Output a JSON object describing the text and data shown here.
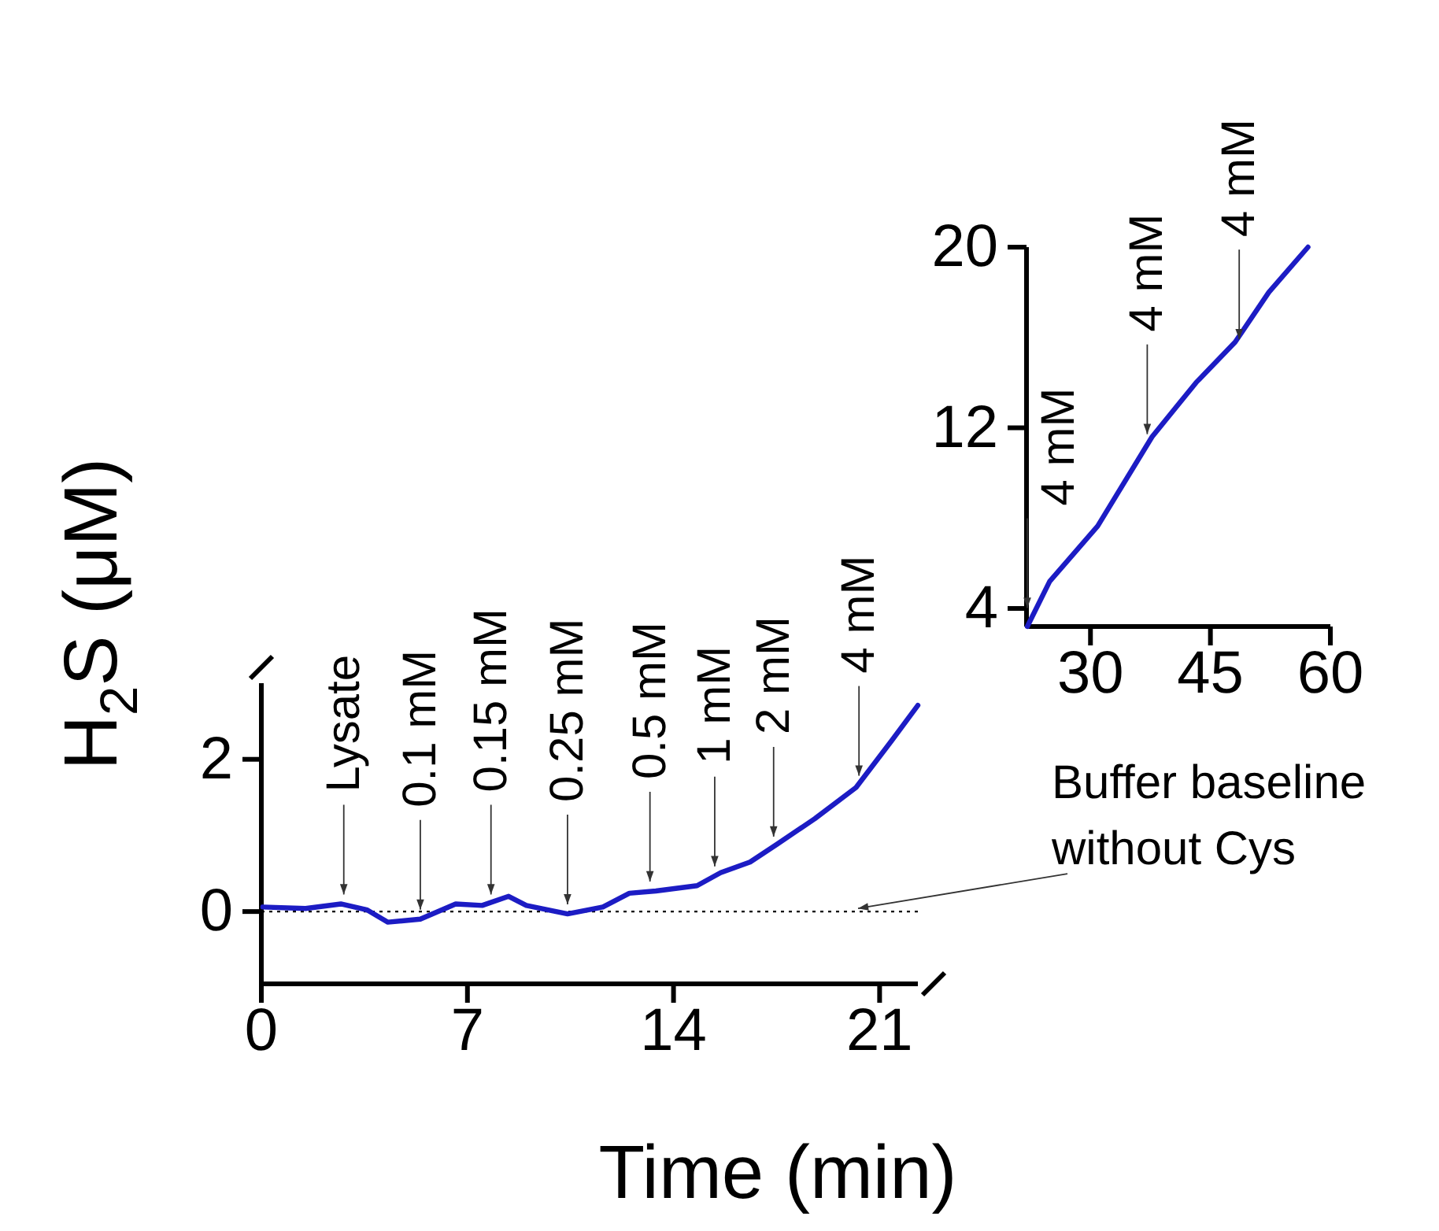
{
  "chart_data": [
    {
      "type": "line",
      "xlabel": "Time (min)",
      "ylabel": "H$_{2}$S (μM)",
      "xlim": [
        0,
        22.3
      ],
      "ylim": [
        -0.95,
        3.0
      ],
      "xticks": [
        0,
        7,
        14,
        21
      ],
      "yticks": [
        0,
        2
      ],
      "x": [
        0.05,
        1.5,
        2.7,
        3.6,
        4.3,
        5.4,
        6.6,
        7.5,
        8.4,
        9.0,
        10.4,
        11.6,
        12.5,
        13.4,
        14.8,
        15.6,
        16.6,
        17.5,
        18.8,
        20.2,
        21.4,
        22.3
      ],
      "series": [
        {
          "color": "#1c1cc4",
          "values": [
            0.06,
            0.04,
            0.1,
            0.02,
            -0.14,
            -0.1,
            0.1,
            0.08,
            0.2,
            0.08,
            -0.03,
            0.06,
            0.24,
            0.27,
            0.34,
            0.51,
            0.65,
            0.88,
            1.22,
            1.63,
            2.24,
            2.71
          ]
        }
      ],
      "ref_lines": [
        {
          "axis": "y",
          "value": 0,
          "label": "Buffer baseline without Cys",
          "line_style": "dotted"
        }
      ],
      "annotations": [
        {
          "text": "Lysate",
          "x": 2.8,
          "y": 0.1
        },
        {
          "text": "0.1 mM",
          "x": 5.4,
          "y": -0.1
        },
        {
          "text": "0.15 mM",
          "x": 7.8,
          "y": 0.1
        },
        {
          "text": "0.25 mM",
          "x": 10.4,
          "y": -0.03
        },
        {
          "text": "0.5 mM",
          "x": 13.2,
          "y": 0.27
        },
        {
          "text": "1 mM",
          "x": 15.4,
          "y": 0.47
        },
        {
          "text": "2 mM",
          "x": 17.4,
          "y": 0.86
        },
        {
          "text": "4 mM",
          "x": 20.3,
          "y": 1.66
        }
      ]
    },
    {
      "type": "line",
      "xlim": [
        22,
        60
      ],
      "ylim": [
        3.2,
        20
      ],
      "xticks": [
        30,
        45,
        60
      ],
      "yticks": [
        4,
        12,
        20
      ],
      "x": [
        22.1,
        24.9,
        30.9,
        37.7,
        43.2,
        48.1,
        52.3,
        57.2
      ],
      "series": [
        {
          "color": "#1c1cc4",
          "values": [
            3.2,
            5.2,
            7.65,
            11.6,
            14.0,
            15.8,
            18.0,
            20.0
          ]
        }
      ],
      "annotations": [
        {
          "text": "4 mM",
          "x": 22.1,
          "y": 3.6
        },
        {
          "text": "4 mM",
          "x": 37.1,
          "y": 11.3
        },
        {
          "text": "4 mM",
          "x": 48.6,
          "y": 15.5
        }
      ]
    }
  ]
}
